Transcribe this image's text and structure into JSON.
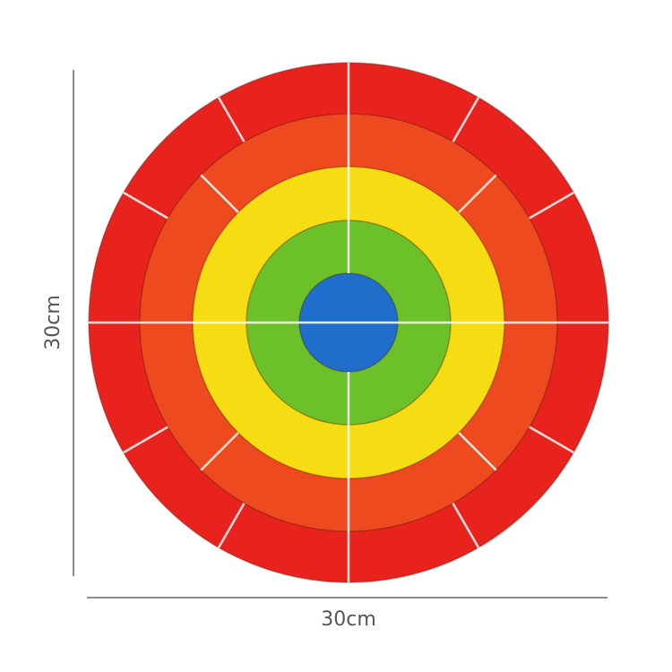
{
  "dimensions": {
    "height": "30cm",
    "width": "30cm"
  }
}
